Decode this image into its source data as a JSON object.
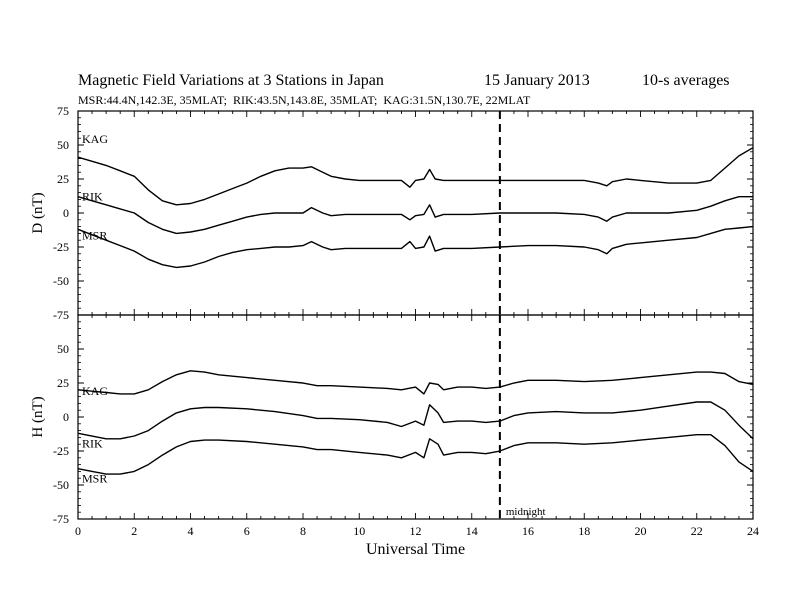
{
  "header": {
    "title": "Magnetic Field Variations at 3 Stations in Japan",
    "date": "15 January 2013",
    "averaging": "10-s averages",
    "stations": "MSR:44.4N,142.3E, 35MLAT;  RIK:43.5N,143.8E, 35MLAT;  KAG:31.5N,130.7E, 22MLAT"
  },
  "chart_data": [
    {
      "type": "line",
      "panel": "D",
      "ylabel": "D (nT)",
      "ylim": [
        -75,
        75
      ],
      "yticks": [
        -75,
        -50,
        -25,
        0,
        25,
        50,
        75
      ],
      "xlim": [
        0,
        24
      ],
      "series": [
        {
          "name": "KAG",
          "x": [
            0,
            0.5,
            1,
            1.5,
            2,
            2.5,
            3,
            3.5,
            4,
            4.5,
            5,
            5.5,
            6,
            6.5,
            7,
            7.5,
            8,
            8.3,
            8.7,
            9,
            9.5,
            10,
            10.5,
            11,
            11.5,
            11.8,
            12,
            12.3,
            12.5,
            12.7,
            13,
            14,
            15,
            16,
            17,
            18,
            18.5,
            18.8,
            19,
            19.5,
            20,
            21,
            22,
            22.5,
            23,
            23.5,
            24
          ],
          "y": [
            41,
            38,
            35,
            31,
            27,
            17,
            9,
            6,
            7,
            10,
            14,
            18,
            22,
            27,
            31,
            33,
            33,
            34,
            30,
            27,
            25,
            24,
            24,
            24,
            24,
            19,
            24,
            25,
            32,
            25,
            24,
            24,
            24,
            24,
            24,
            24,
            22,
            20,
            23,
            25,
            24,
            22,
            22,
            24,
            33,
            42,
            48
          ]
        },
        {
          "name": "RIK",
          "x": [
            0,
            0.5,
            1,
            1.5,
            2,
            2.5,
            3,
            3.5,
            4,
            4.5,
            5,
            5.5,
            6,
            6.5,
            7,
            7.5,
            8,
            8.3,
            8.7,
            9,
            9.5,
            10,
            10.5,
            11,
            11.5,
            11.8,
            12,
            12.3,
            12.5,
            12.7,
            13,
            14,
            15,
            16,
            17,
            18,
            18.5,
            18.8,
            19,
            19.5,
            20,
            21,
            22,
            22.5,
            23,
            23.5,
            24
          ],
          "y": [
            12,
            9,
            6,
            3,
            0,
            -7,
            -12,
            -15,
            -14,
            -12,
            -9,
            -6,
            -3,
            -1,
            0,
            0,
            0,
            4,
            0,
            -2,
            -1,
            -1,
            -1,
            -1,
            -1,
            -5,
            -2,
            -1,
            6,
            -3,
            -1,
            -1,
            0,
            0,
            0,
            -1,
            -3,
            -6,
            -3,
            0,
            0,
            0,
            2,
            5,
            9,
            12,
            12
          ]
        },
        {
          "name": "MSR",
          "x": [
            0,
            0.5,
            1,
            1.5,
            2,
            2.5,
            3,
            3.5,
            4,
            4.5,
            5,
            5.5,
            6,
            6.5,
            7,
            7.5,
            8,
            8.3,
            8.7,
            9,
            9.5,
            10,
            10.5,
            11,
            11.5,
            11.8,
            12,
            12.3,
            12.5,
            12.7,
            13,
            14,
            15,
            16,
            17,
            18,
            18.5,
            18.8,
            19,
            19.5,
            20,
            21,
            22,
            22.5,
            23,
            23.5,
            24
          ],
          "y": [
            -12,
            -16,
            -20,
            -24,
            -28,
            -34,
            -38,
            -40,
            -39,
            -36,
            -32,
            -29,
            -27,
            -26,
            -25,
            -25,
            -24,
            -21,
            -25,
            -27,
            -26,
            -26,
            -26,
            -26,
            -26,
            -21,
            -26,
            -25,
            -17,
            -28,
            -26,
            -26,
            -25,
            -24,
            -24,
            -25,
            -27,
            -30,
            -26,
            -23,
            -22,
            -20,
            -18,
            -15,
            -12,
            -11,
            -10
          ]
        }
      ],
      "annotations": [
        {
          "text": "",
          "x": 15,
          "style": "dashed-vertical"
        }
      ]
    },
    {
      "type": "line",
      "panel": "H",
      "ylabel": "H (nT)",
      "xlabel": "Universal Time",
      "ylim": [
        -75,
        75
      ],
      "yticks": [
        -75,
        -50,
        -25,
        0,
        25,
        50,
        75
      ],
      "xlim": [
        0,
        24
      ],
      "xticks": [
        0,
        2,
        4,
        6,
        8,
        10,
        12,
        14,
        16,
        18,
        20,
        22,
        24
      ],
      "series": [
        {
          "name": "KAG",
          "x": [
            0,
            0.5,
            1,
            1.5,
            2,
            2.5,
            3,
            3.5,
            4,
            4.5,
            5,
            6,
            7,
            8,
            8.5,
            9,
            10,
            11,
            11.5,
            12,
            12.3,
            12.5,
            12.8,
            13,
            13.5,
            14,
            14.5,
            15,
            15.5,
            16,
            17,
            18,
            19,
            20,
            21,
            22,
            22.5,
            23,
            23.5,
            24
          ],
          "y": [
            20,
            19,
            18,
            17,
            17,
            20,
            26,
            31,
            34,
            33,
            31,
            29,
            27,
            25,
            23,
            23,
            22,
            21,
            20,
            22,
            17,
            25,
            24,
            20,
            22,
            22,
            21,
            22,
            25,
            27,
            27,
            26,
            27,
            29,
            31,
            33,
            33,
            32,
            26,
            24
          ]
        },
        {
          "name": "RIK",
          "x": [
            0,
            0.5,
            1,
            1.5,
            2,
            2.5,
            3,
            3.5,
            4,
            4.5,
            5,
            6,
            7,
            8,
            8.5,
            9,
            10,
            11,
            11.5,
            12,
            12.3,
            12.5,
            12.8,
            13,
            13.5,
            14,
            14.5,
            15,
            15.5,
            16,
            17,
            18,
            19,
            20,
            21,
            22,
            22.5,
            23,
            23.5,
            24
          ],
          "y": [
            -12,
            -14,
            -16,
            -16,
            -14,
            -10,
            -3,
            3,
            6,
            7,
            7,
            6,
            4,
            1,
            -1,
            -1,
            -2,
            -4,
            -7,
            -3,
            -6,
            9,
            3,
            -4,
            -3,
            -3,
            -4,
            -3,
            1,
            3,
            4,
            3,
            3,
            5,
            8,
            11,
            11,
            5,
            -6,
            -16
          ]
        },
        {
          "name": "MSR",
          "x": [
            0,
            0.5,
            1,
            1.5,
            2,
            2.5,
            3,
            3.5,
            4,
            4.5,
            5,
            6,
            7,
            8,
            8.5,
            9,
            10,
            11,
            11.5,
            12,
            12.3,
            12.5,
            12.8,
            13,
            13.5,
            14,
            14.5,
            15,
            15.5,
            16,
            17,
            18,
            19,
            20,
            21,
            22,
            22.5,
            23,
            23.5,
            24
          ],
          "y": [
            -38,
            -40,
            -42,
            -42,
            -40,
            -35,
            -28,
            -22,
            -18,
            -17,
            -17,
            -18,
            -20,
            -22,
            -24,
            -24,
            -26,
            -28,
            -30,
            -26,
            -30,
            -16,
            -20,
            -28,
            -26,
            -26,
            -27,
            -25,
            -21,
            -19,
            -19,
            -20,
            -19,
            -17,
            -15,
            -13,
            -13,
            -21,
            -33,
            -40
          ]
        }
      ],
      "annotations": [
        {
          "text": "midnight",
          "x": 15,
          "style": "dashed-vertical"
        }
      ]
    }
  ]
}
